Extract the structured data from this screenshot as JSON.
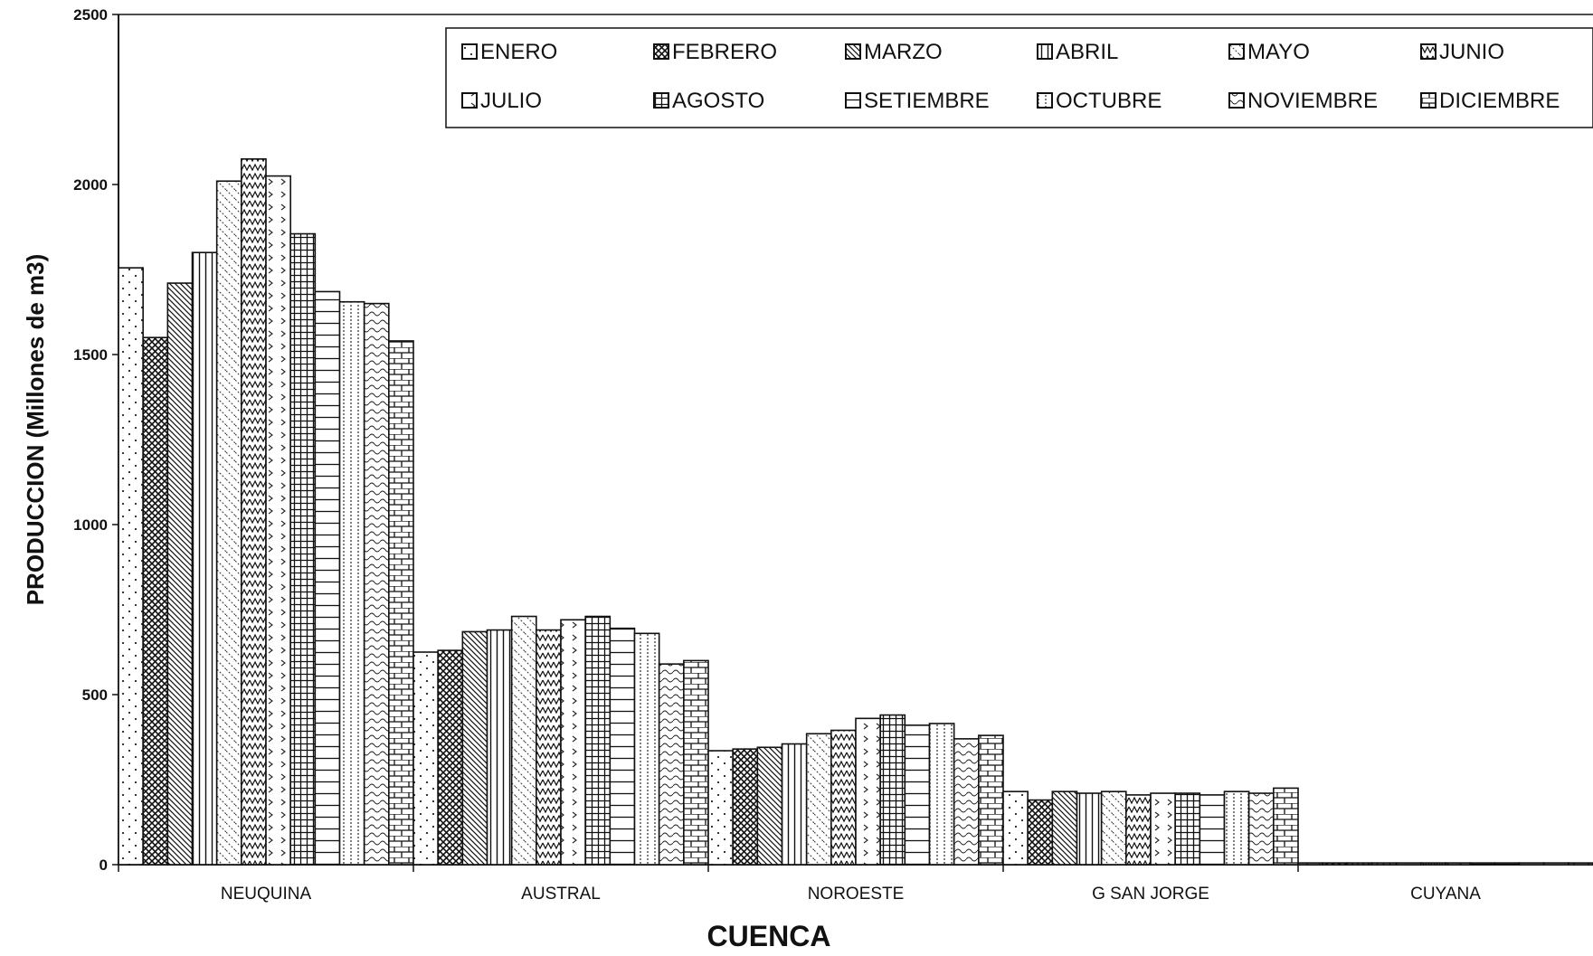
{
  "chart_data": {
    "type": "bar",
    "title": "",
    "xlabel": "CUENCA",
    "ylabel": "PRODUCCION (Millones de m3)",
    "ylim": [
      0,
      2500
    ],
    "yticks": [
      "0",
      "500",
      "1000",
      "1500",
      "2000",
      "2500"
    ],
    "grid": false,
    "legend_position": "top-right",
    "categories": [
      "NEUQUINA",
      "AUSTRAL",
      "NOROESTE",
      "G SAN JORGE",
      "CUYANA"
    ],
    "series": [
      {
        "name": "ENERO",
        "pattern": "dots",
        "values": [
          1755,
          625,
          335,
          215,
          5
        ]
      },
      {
        "name": "FEBRERO",
        "pattern": "crosshatch",
        "values": [
          1550,
          630,
          340,
          190,
          5
        ]
      },
      {
        "name": "MARZO",
        "pattern": "diagonal",
        "values": [
          1710,
          685,
          345,
          215,
          5
        ]
      },
      {
        "name": "ABRIL",
        "pattern": "vertical",
        "values": [
          1800,
          690,
          355,
          210,
          5
        ]
      },
      {
        "name": "MAYO",
        "pattern": "sparse-diag",
        "values": [
          2010,
          730,
          385,
          215,
          5
        ]
      },
      {
        "name": "JUNIO",
        "pattern": "zigzag",
        "values": [
          2075,
          690,
          395,
          205,
          5
        ]
      },
      {
        "name": "JULIO",
        "pattern": "chevron",
        "values": [
          2025,
          720,
          430,
          210,
          5
        ]
      },
      {
        "name": "AGOSTO",
        "pattern": "grid",
        "values": [
          1855,
          730,
          440,
          210,
          5
        ]
      },
      {
        "name": "SETIEMBRE",
        "pattern": "horizontal",
        "values": [
          1685,
          695,
          410,
          205,
          5
        ]
      },
      {
        "name": "OCTUBRE",
        "pattern": "dotted-vert",
        "values": [
          1655,
          680,
          415,
          215,
          5
        ]
      },
      {
        "name": "NOVIEMBRE",
        "pattern": "waves",
        "values": [
          1650,
          590,
          370,
          210,
          5
        ]
      },
      {
        "name": "DICIEMBRE",
        "pattern": "brick",
        "values": [
          1540,
          600,
          380,
          225,
          5
        ]
      }
    ]
  }
}
